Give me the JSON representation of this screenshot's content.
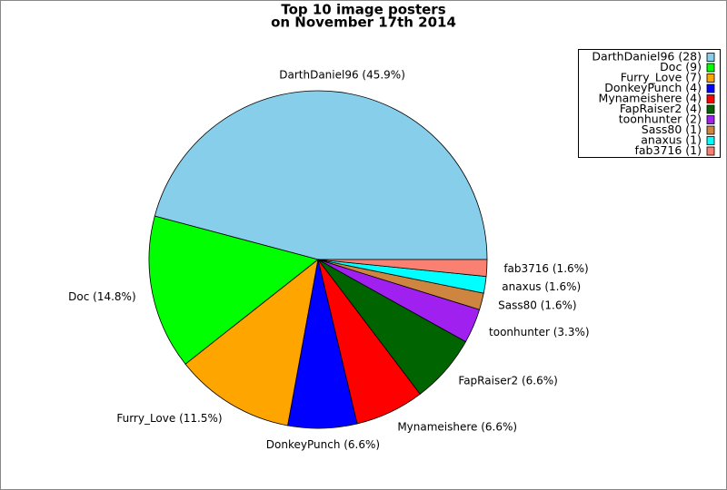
{
  "chart_data": {
    "type": "pie",
    "title": "Top 10 image posters",
    "subtitle": "on November 17th 2014",
    "values": [
      45.9,
      14.8,
      11.5,
      6.6,
      6.6,
      6.6,
      3.3,
      1.6,
      1.6,
      1.6
    ],
    "value_labels": [
      "DarthDaniel96 (45.9%)",
      "Doc (14.8%)",
      "Furry_Love (11.5%)",
      "DonkeyPunch (6.6%)",
      "Mynameishere (6.6%)",
      "FapRaiser2 (6.6%)",
      "toonhunter (3.3%)",
      "Sass80 (1.6%)",
      "anaxus (1.6%)",
      "fab3716 (1.6%)"
    ],
    "legend_labels": [
      "DarthDaniel96 (28)",
      "Doc (9)",
      "Furry_Love (7)",
      "DonkeyPunch (4)",
      "Mynameishere (4)",
      "FapRaiser2 (4)",
      "toonhunter (2)",
      "Sass80 (1)",
      "anaxus (1)",
      "fab3716 (1)"
    ],
    "colors": [
      "#87ceeb",
      "#00ff00",
      "#ffa500",
      "#0000ff",
      "#ff0000",
      "#006400",
      "#a020f0",
      "#cd853f",
      "#00ffff",
      "#fa8072"
    ],
    "legend": "upper right"
  }
}
